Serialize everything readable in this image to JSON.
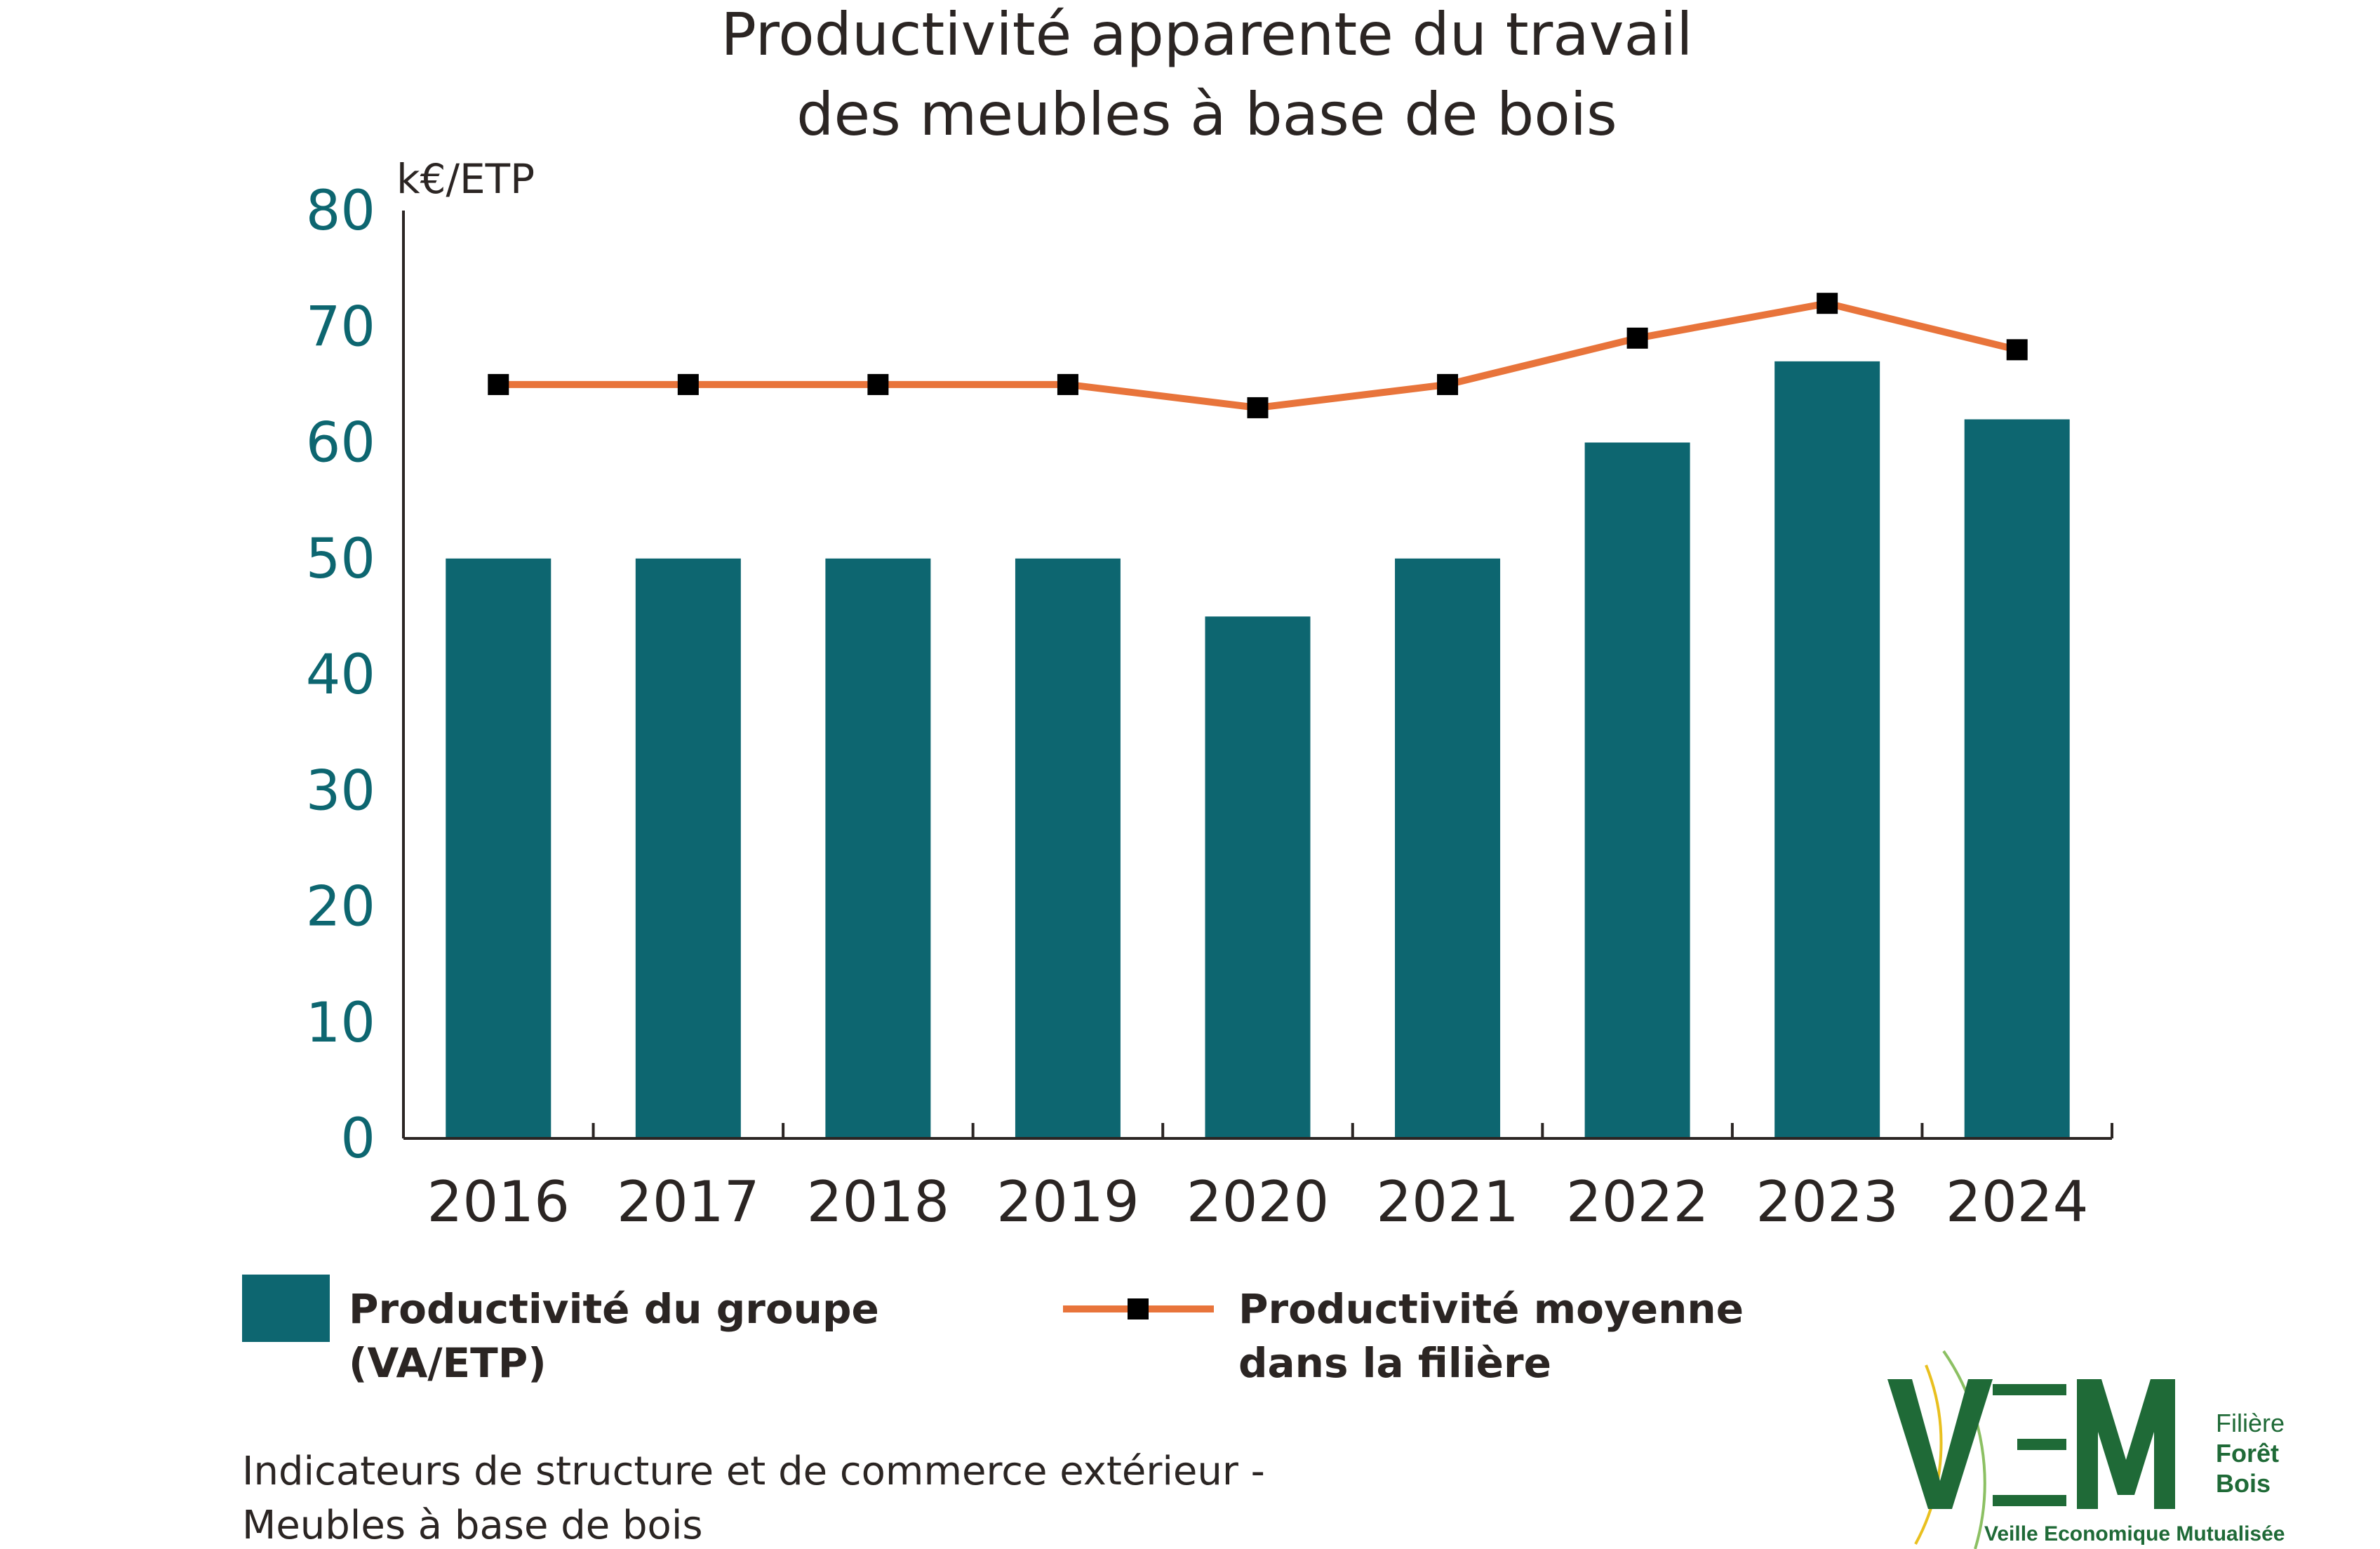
{
  "chart_data": {
    "type": "bar",
    "title_lines": [
      "Productivité apparente du travail",
      "des meubles à base de bois"
    ],
    "ylabel": "k€/ETP",
    "ylim": [
      0,
      80
    ],
    "yticks": [
      0,
      10,
      20,
      30,
      40,
      50,
      60,
      70,
      80
    ],
    "categories": [
      "2016",
      "2017",
      "2018",
      "2019",
      "2020",
      "2021",
      "2022",
      "2023",
      "2024"
    ],
    "series": [
      {
        "name": "Productivité du groupe (VA/ETP)",
        "legend_lines": [
          "Productivité du groupe",
          "(VA/ETP)"
        ],
        "type": "bar",
        "color": "#0d6670",
        "values": [
          50,
          50,
          50,
          50,
          45,
          50,
          60,
          67,
          62
        ]
      },
      {
        "name": "Productivité moyenne dans la filière",
        "legend_lines": [
          "Productivité moyenne",
          "dans la filière"
        ],
        "type": "line",
        "color": "#e8743b",
        "marker_color": "#000000",
        "values": [
          65,
          65,
          65,
          65,
          63,
          65,
          69,
          72,
          68
        ]
      }
    ],
    "grid": false,
    "legend_position": "bottom"
  },
  "source_lines": [
    "Indicateurs de structure et de commerce extérieur -",
    "Meubles à base de bois"
  ],
  "logo": {
    "mark": "VEM",
    "line1": "Filière",
    "line2": "Forêt",
    "line3": "Bois",
    "tagline": "Veille Economique Mutualisée"
  }
}
